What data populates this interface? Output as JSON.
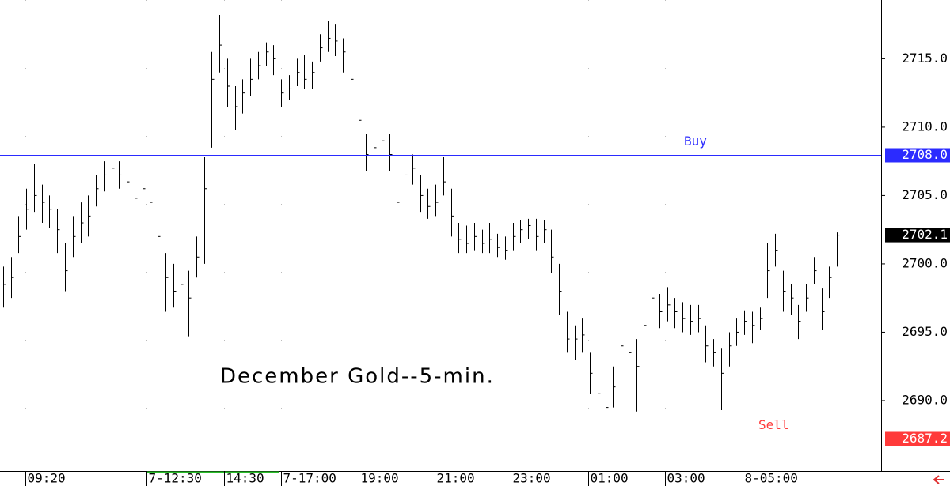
{
  "chart_data": {
    "type": "ohlc",
    "title": "December Gold--5-min.",
    "ylim": [
      2685.2,
      2719.3
    ],
    "xlim": [
      -0.41,
      113.74
    ],
    "yticks": [
      {
        "value": 2690,
        "label": "2690.0"
      },
      {
        "value": 2695,
        "label": "2695.0"
      },
      {
        "value": 2700,
        "label": "2700.0"
      },
      {
        "value": 2705,
        "label": "2705.0"
      },
      {
        "value": 2710,
        "label": "2710.0"
      },
      {
        "value": 2715,
        "label": "2715.0"
      }
    ],
    "xticks": [
      {
        "value": 2.9,
        "label": "09:20"
      },
      {
        "value": 18.6,
        "label": "7-12:30"
      },
      {
        "value": 28.6,
        "label": "14:30"
      },
      {
        "value": 36,
        "label": "7-17:00"
      },
      {
        "value": 46,
        "label": "19:00"
      },
      {
        "value": 55.9,
        "label": "21:00"
      },
      {
        "value": 65.7,
        "label": "23:00"
      },
      {
        "value": 75.8,
        "label": "01:00"
      },
      {
        "value": 85.7,
        "label": "03:00"
      },
      {
        "value": 95.8,
        "label": "8-05:00"
      }
    ],
    "color": "#000000",
    "high": [
      2699.8,
      2700.5,
      2703.5,
      2705.5,
      2707.3,
      2705.8,
      2705,
      2704,
      2701.5,
      2703.5,
      2704.5,
      2705,
      2706.5,
      2707.5,
      2707.8,
      2707.5,
      2707,
      2706,
      2706.8,
      2705.8,
      2704,
      2700.8,
      2700,
      2700.5,
      2699.5,
      2702,
      2707.8,
      2715.5,
      2718.2,
      2715,
      2713,
      2713.5,
      2715,
      2715.5,
      2716.2,
      2716,
      2713.5,
      2713.8,
      2715,
      2715.3,
      2714.8,
      2716.8,
      2717.8,
      2717.5,
      2716.5,
      2714.8,
      2712.5,
      2709.5,
      2709.8,
      2710.3,
      2709.5,
      2706.5,
      2707.8,
      2708,
      2706.5,
      2705.5,
      2705.8,
      2707.8,
      2705.5,
      2703,
      2702.8,
      2703,
      2702.5,
      2703,
      2702.2,
      2702,
      2703,
      2703.2,
      2703.3,
      2703.3,
      2703.2,
      2702.5,
      2700,
      2696.5,
      2695.5,
      2696,
      2693.5,
      2692,
      2691,
      2692.5,
      2695.5,
      2695,
      2694.5,
      2697,
      2698.8,
      2697.8,
      2698.3,
      2697.5,
      2697.2,
      2697,
      2697,
      2695.5,
      2694.5,
      2693.8,
      2695,
      2696,
      2696.6,
      2696.5,
      2696.8,
      2701.5,
      2702.2,
      2699.5,
      2698.5,
      2697,
      2698.5,
      2700.5,
      2698.2,
      2699.8,
      2702.3
    ],
    "low": [
      2696.8,
      2697.5,
      2700.8,
      2702.5,
      2703.8,
      2703,
      2702.6,
      2700.8,
      2698,
      2700.5,
      2701.5,
      2702,
      2704.2,
      2705.3,
      2705.8,
      2705.5,
      2704.8,
      2703.5,
      2704.3,
      2703,
      2700.5,
      2696.5,
      2696.8,
      2697,
      2694.7,
      2699,
      2700,
      2708.5,
      2714,
      2711.5,
      2709.8,
      2711,
      2712.3,
      2713.5,
      2714.5,
      2713.8,
      2711.5,
      2712,
      2713,
      2712.8,
      2712.8,
      2714.8,
      2715.5,
      2715.2,
      2714,
      2712,
      2709,
      2706.8,
      2707.5,
      2707.8,
      2706.8,
      2702.3,
      2705.5,
      2705.8,
      2703.8,
      2703.3,
      2703.5,
      2705,
      2702,
      2700.8,
      2700.8,
      2701,
      2700.8,
      2700.8,
      2700.5,
      2700.3,
      2701,
      2701.5,
      2701.8,
      2701,
      2701.5,
      2699.3,
      2696.3,
      2693.5,
      2693,
      2693.5,
      2690.5,
      2689.3,
      2687.2,
      2689.5,
      2692.8,
      2690,
      2689.2,
      2694,
      2693,
      2695.3,
      2695.8,
      2695.3,
      2695,
      2694.8,
      2695,
      2692.8,
      2692.5,
      2689.3,
      2692.5,
      2694,
      2694.8,
      2694.2,
      2695.2,
      2697.5,
      2699.8,
      2696.5,
      2696.3,
      2694.5,
      2696.5,
      2698.5,
      2695.2,
      2697.5,
      2699.8
    ],
    "close": [
      2698.5,
      2699,
      2702,
      2704,
      2705,
      2704.5,
      2704,
      2702.5,
      2699.5,
      2702,
      2703,
      2703.5,
      2705.5,
      2706.5,
      2707,
      2706.5,
      2706,
      2704.8,
      2705.5,
      2704.5,
      2702,
      2699,
      2698,
      2698.5,
      2697.5,
      2700.5,
      2705.5,
      2713.5,
      2716,
      2713,
      2711.5,
      2712.5,
      2713.5,
      2714.5,
      2715.5,
      2715,
      2712.5,
      2712.8,
      2714,
      2713.5,
      2714,
      2715.8,
      2716.5,
      2716.3,
      2715.5,
      2713.5,
      2710.5,
      2708,
      2708.5,
      2709,
      2708,
      2704.5,
      2706.5,
      2707,
      2705,
      2704.2,
      2704.5,
      2706,
      2703.5,
      2701.8,
      2701.5,
      2702,
      2701.5,
      2701.8,
      2701.2,
      2701,
      2702,
      2702.5,
      2702.8,
      2702,
      2702.5,
      2700.5,
      2698,
      2694.5,
      2694.5,
      2694.8,
      2692,
      2690.5,
      2689.5,
      2691,
      2694,
      2693.5,
      2692.5,
      2695.5,
      2697.5,
      2696.5,
      2697,
      2696.5,
      2696,
      2695.8,
      2696,
      2694,
      2693.5,
      2692,
      2694,
      2695,
      2695.8,
      2695.5,
      2696,
      2699.5,
      2701,
      2698,
      2697.5,
      2695.8,
      2697.5,
      2699.5,
      2696.5,
      2699,
      2702.1
    ],
    "hlines": [
      {
        "name": "Buy",
        "value": 2708,
        "value_label": "2708.0",
        "color": "#2b2bff"
      },
      {
        "name": "Sell",
        "value": 2687.2,
        "value_label": "2687.2",
        "color": "#ff3a3a"
      }
    ],
    "last_price": {
      "value": 2702.1,
      "label": "2702.1"
    }
  }
}
